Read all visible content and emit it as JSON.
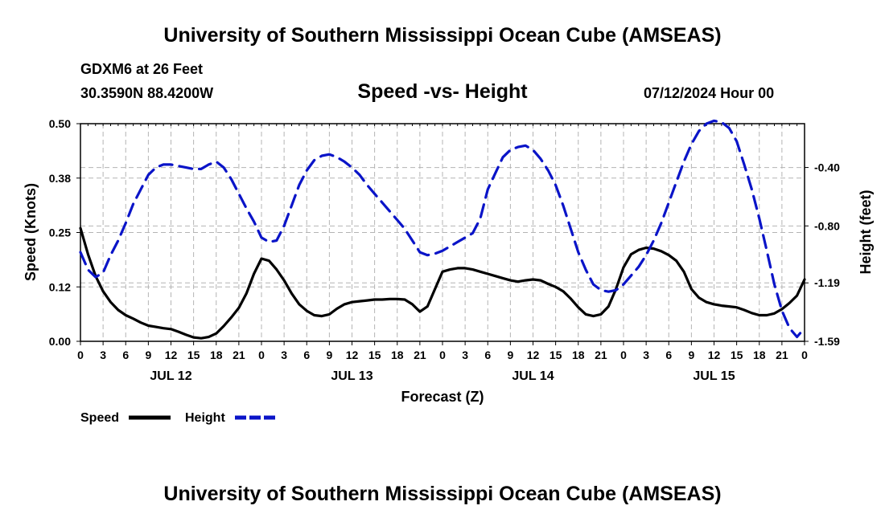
{
  "header": {
    "title": "University of Southern Mississippi Ocean Cube (AMSEAS)",
    "station": "GDXM6 at 26 Feet",
    "coords": "30.3590N  88.4200W",
    "subtitle": "Speed -vs- Height",
    "datetime": "07/12/2024 Hour 00"
  },
  "footer": {
    "title": "University of Southern Mississippi Ocean Cube (AMSEAS)"
  },
  "legend": {
    "speed_label": "Speed",
    "height_label": "Height"
  },
  "colors": {
    "speed": "#000000",
    "height": "#0a14c8",
    "grid": "#b4b4b4"
  },
  "chart_data": {
    "type": "line",
    "title": "Speed -vs- Height",
    "xlabel": "Forecast (Z)",
    "ylabel": "Speed (Knots)",
    "y2label": "Height (feet)",
    "xlim": [
      0,
      96
    ],
    "ylim": [
      0,
      0.5
    ],
    "y2lim": [
      -1.59,
      -0.1
    ],
    "yticks": [
      0.0,
      0.125,
      0.25,
      0.375,
      0.5
    ],
    "ytick_labels": [
      "0.00",
      "0.12",
      "0.25",
      "0.38",
      "0.50"
    ],
    "y2ticks": [
      -1.59,
      -1.19,
      -0.8,
      -0.4
    ],
    "y2tick_labels": [
      "-1.59",
      "-1.19",
      "-0.80",
      "-0.40"
    ],
    "xtick_positions": [
      0,
      3,
      6,
      9,
      12,
      15,
      18,
      21,
      24,
      27,
      30,
      33,
      36,
      39,
      42,
      45,
      48,
      51,
      54,
      57,
      60,
      63,
      66,
      69,
      72,
      75,
      78,
      81,
      84,
      87,
      90,
      93,
      96
    ],
    "xtick_labels": [
      "0",
      "3",
      "6",
      "9",
      "12",
      "15",
      "18",
      "21",
      "0",
      "3",
      "6",
      "9",
      "12",
      "15",
      "18",
      "21",
      "0",
      "3",
      "6",
      "9",
      "12",
      "15",
      "18",
      "21",
      "0",
      "3",
      "6",
      "9",
      "12",
      "15",
      "18",
      "21",
      "0"
    ],
    "day_labels": [
      {
        "x": 12,
        "label": "JUL 12"
      },
      {
        "x": 36,
        "label": "JUL 13"
      },
      {
        "x": 60,
        "label": "JUL 14"
      },
      {
        "x": 84,
        "label": "JUL 15"
      }
    ],
    "series": [
      {
        "name": "Speed",
        "axis": "left",
        "style": "solid",
        "x": [
          0,
          1,
          2,
          3,
          4,
          5,
          6,
          7,
          8,
          9,
          10,
          11,
          12,
          13,
          14,
          15,
          16,
          17,
          18,
          19,
          20,
          21,
          22,
          23,
          24,
          25,
          26,
          27,
          28,
          29,
          30,
          31,
          32,
          33,
          34,
          35,
          36,
          37,
          38,
          39,
          40,
          41,
          42,
          43,
          44,
          45,
          46,
          47,
          48,
          49,
          50,
          51,
          52,
          53,
          54,
          55,
          56,
          57,
          58,
          59,
          60,
          61,
          62,
          63,
          64,
          65,
          66,
          67,
          68,
          69,
          70,
          71,
          72,
          73,
          74,
          75,
          76,
          77,
          78,
          79,
          80,
          81,
          82,
          83,
          84,
          85,
          86,
          87,
          88,
          89,
          90,
          91,
          92,
          93,
          94,
          95,
          96
        ],
        "values": [
          0.26,
          0.2,
          0.15,
          0.115,
          0.09,
          0.072,
          0.06,
          0.052,
          0.043,
          0.036,
          0.033,
          0.03,
          0.028,
          0.022,
          0.015,
          0.009,
          0.007,
          0.01,
          0.018,
          0.035,
          0.055,
          0.077,
          0.11,
          0.155,
          0.19,
          0.185,
          0.165,
          0.14,
          0.11,
          0.085,
          0.07,
          0.06,
          0.058,
          0.062,
          0.075,
          0.085,
          0.09,
          0.092,
          0.094,
          0.096,
          0.096,
          0.097,
          0.097,
          0.096,
          0.085,
          0.068,
          0.08,
          0.12,
          0.16,
          0.165,
          0.168,
          0.168,
          0.165,
          0.16,
          0.155,
          0.15,
          0.145,
          0.14,
          0.137,
          0.14,
          0.142,
          0.14,
          0.132,
          0.125,
          0.115,
          0.098,
          0.078,
          0.062,
          0.058,
          0.062,
          0.08,
          0.12,
          0.17,
          0.2,
          0.21,
          0.215,
          0.213,
          0.207,
          0.198,
          0.185,
          0.16,
          0.12,
          0.1,
          0.09,
          0.085,
          0.082,
          0.08,
          0.078,
          0.072,
          0.065,
          0.06,
          0.06,
          0.064,
          0.074,
          0.088,
          0.105,
          0.142
        ]
      },
      {
        "name": "Height",
        "axis": "right",
        "style": "dashed",
        "x": [
          0,
          1,
          2,
          3,
          4,
          5,
          6,
          7,
          8,
          9,
          10,
          11,
          12,
          13,
          14,
          15,
          16,
          17,
          18,
          19,
          20,
          21,
          22,
          23,
          24,
          25,
          26,
          27,
          28,
          29,
          30,
          31,
          32,
          33,
          34,
          35,
          36,
          37,
          38,
          39,
          40,
          41,
          42,
          43,
          44,
          45,
          46,
          47,
          48,
          49,
          50,
          51,
          52,
          53,
          54,
          55,
          56,
          57,
          58,
          59,
          60,
          61,
          62,
          63,
          64,
          65,
          66,
          67,
          68,
          69,
          70,
          71,
          72,
          73,
          74,
          75,
          76,
          77,
          78,
          79,
          80,
          81,
          82,
          83,
          84,
          85,
          86,
          87,
          88,
          89,
          90,
          91,
          92,
          93,
          94,
          95,
          96
        ],
        "values": [
          -0.98,
          -1.1,
          -1.15,
          -1.12,
          -1.0,
          -0.9,
          -0.78,
          -0.65,
          -0.55,
          -0.45,
          -0.4,
          -0.38,
          -0.38,
          -0.39,
          -0.4,
          -0.41,
          -0.41,
          -0.38,
          -0.36,
          -0.4,
          -0.48,
          -0.58,
          -0.68,
          -0.77,
          -0.88,
          -0.91,
          -0.9,
          -0.8,
          -0.66,
          -0.52,
          -0.42,
          -0.35,
          -0.32,
          -0.31,
          -0.33,
          -0.36,
          -0.4,
          -0.45,
          -0.52,
          -0.58,
          -0.64,
          -0.7,
          -0.76,
          -0.82,
          -0.9,
          -0.98,
          -1.0,
          -0.99,
          -0.97,
          -0.94,
          -0.91,
          -0.88,
          -0.85,
          -0.75,
          -0.55,
          -0.44,
          -0.33,
          -0.28,
          -0.26,
          -0.25,
          -0.28,
          -0.34,
          -0.42,
          -0.52,
          -0.66,
          -0.82,
          -0.98,
          -1.1,
          -1.2,
          -1.24,
          -1.25,
          -1.24,
          -1.2,
          -1.14,
          -1.08,
          -1.0,
          -0.9,
          -0.78,
          -0.64,
          -0.5,
          -0.36,
          -0.24,
          -0.15,
          -0.1,
          -0.08,
          -0.09,
          -0.13,
          -0.22,
          -0.38,
          -0.55,
          -0.75,
          -0.97,
          -1.2,
          -1.38,
          -1.5,
          -1.56,
          -1.5
        ]
      }
    ]
  }
}
